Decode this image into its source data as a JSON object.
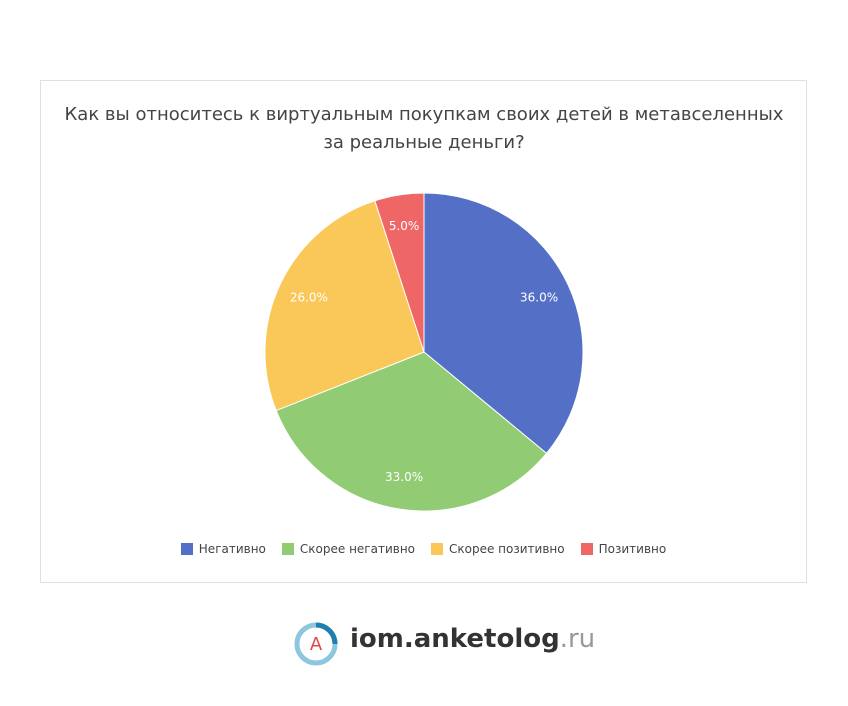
{
  "chart_data": {
    "type": "pie",
    "title": "Как вы относитесь к виртуальным покупкам своих детей в метавселенных за реальные деньги?",
    "categories": [
      "Негативно",
      "Скорее негативно",
      "Скорее позитивно",
      "Позитивно"
    ],
    "values": [
      36,
      33,
      26,
      5
    ],
    "value_labels": [
      "36.0%",
      "33.0%",
      "26.0%",
      "5.0%"
    ],
    "colors": [
      "#5470c6",
      "#91cc75",
      "#fac858",
      "#ee6666"
    ],
    "legend": "bottom"
  },
  "footer": {
    "logo_letter": "A",
    "brand": "iom.anketolog",
    "domain": ".ru"
  }
}
